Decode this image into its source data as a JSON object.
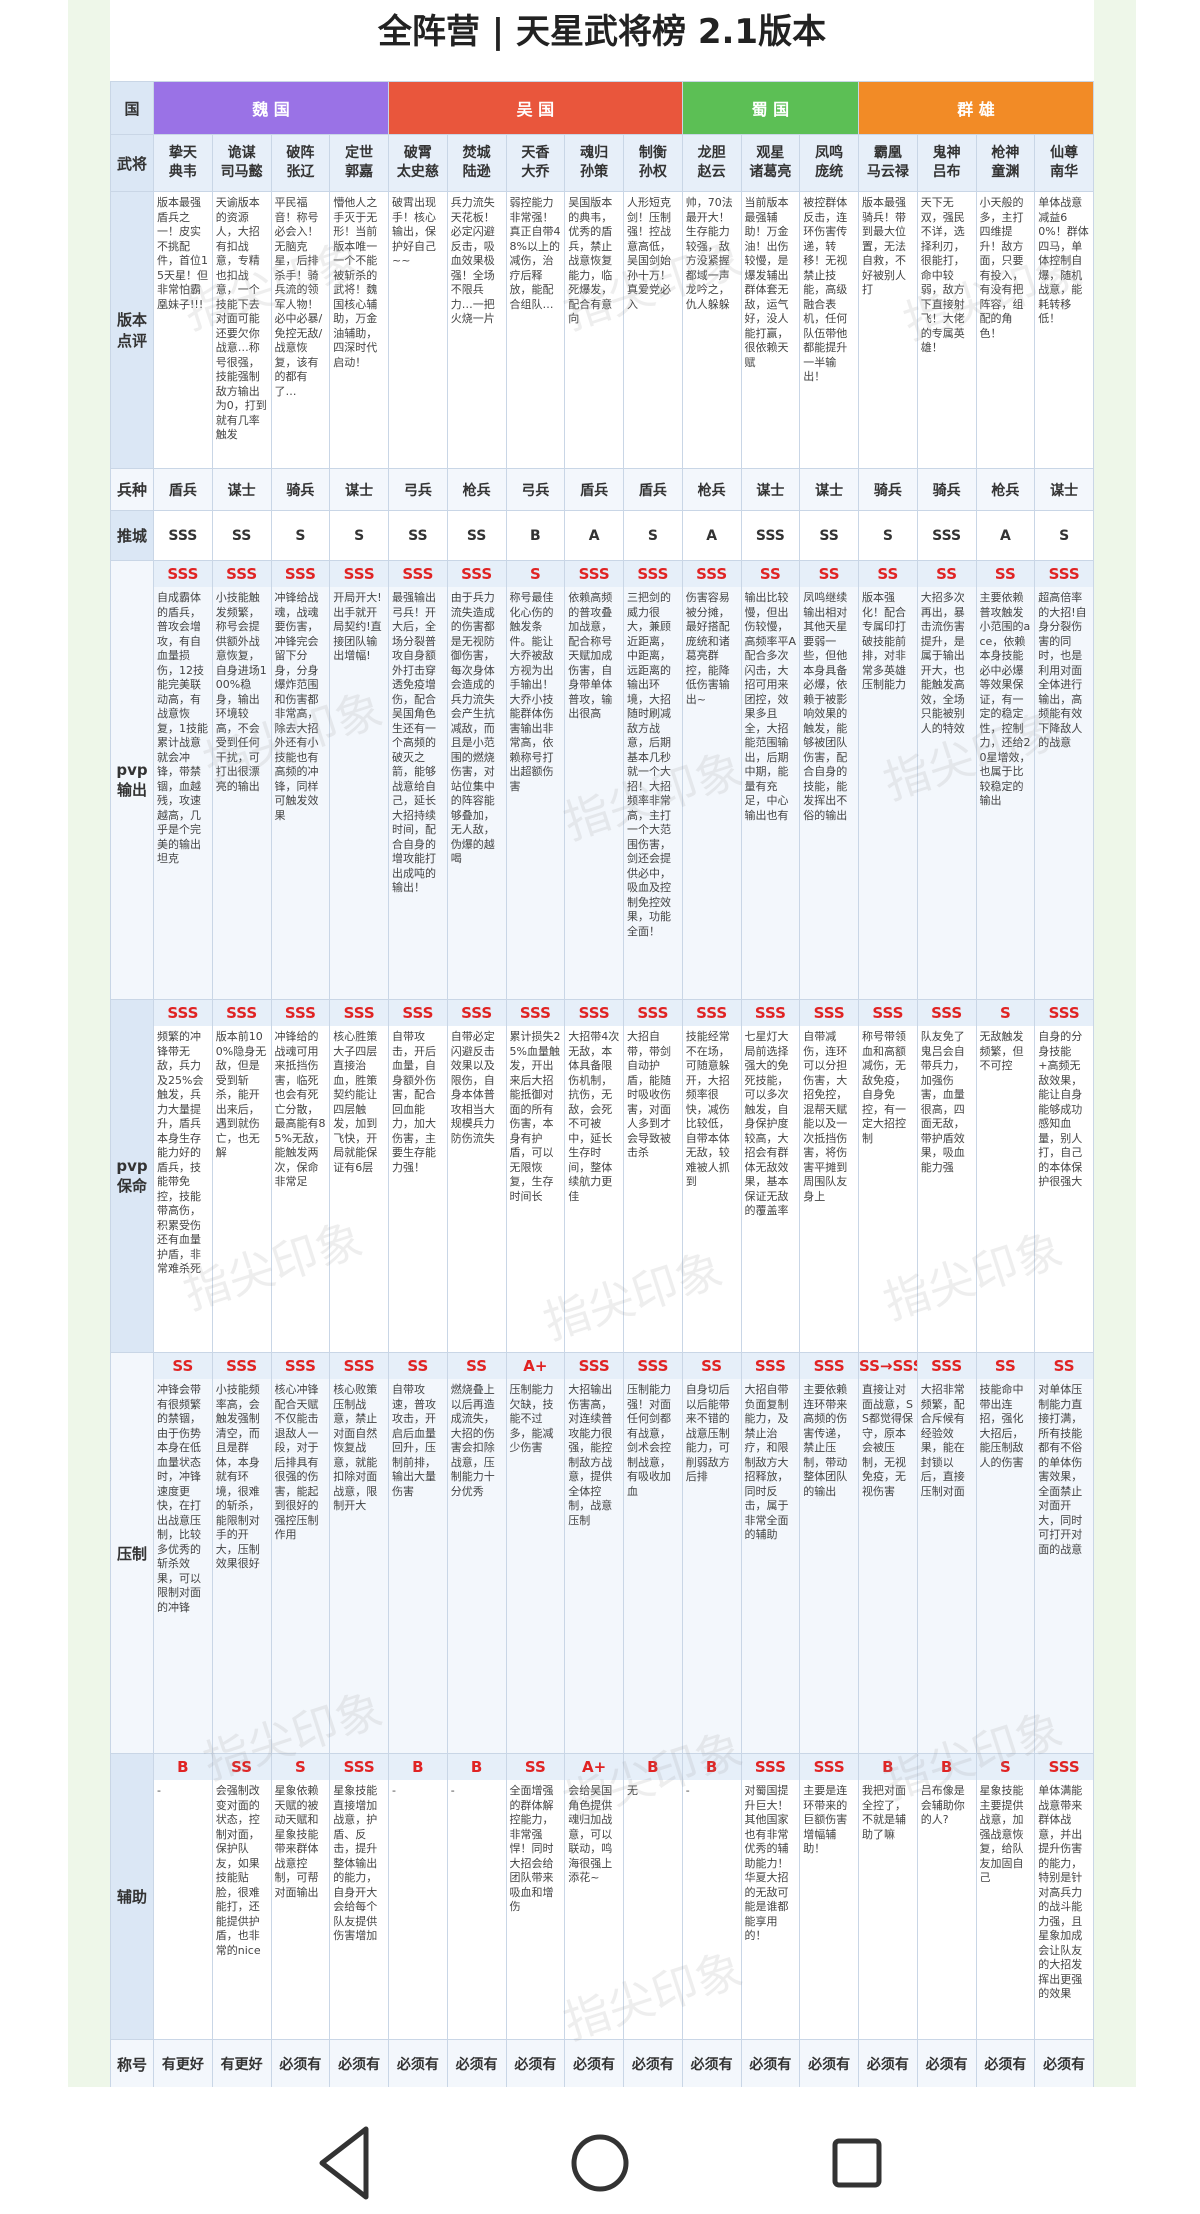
{
  "title": "全阵营 | 天星武将榜 2.1版本",
  "watermark": "指尖印象",
  "labels": {
    "faction": "国",
    "general": "武将"
  },
  "factions": [
    {
      "name": "魏 国",
      "color": "#9a72e6",
      "generals": [
        {
          "title": "挚天",
          "name": "典韦"
        },
        {
          "title": "诡谋",
          "name": "司马懿"
        },
        {
          "title": "破阵",
          "name": "张辽"
        },
        {
          "title": "定世",
          "name": "郭嘉"
        }
      ]
    },
    {
      "name": "吴 国",
      "color": "#e9563c",
      "generals": [
        {
          "title": "破霄",
          "name": "太史慈"
        },
        {
          "title": "焚城",
          "name": "陆逊"
        },
        {
          "title": "天香",
          "name": "大乔"
        },
        {
          "title": "魂归",
          "name": "孙策"
        },
        {
          "title": "制衡",
          "name": "孙权"
        }
      ]
    },
    {
      "name": "蜀 国",
      "color": "#5cbf55",
      "generals": [
        {
          "title": "龙胆",
          "name": "赵云"
        },
        {
          "title": "观星",
          "name": "诸葛亮"
        },
        {
          "title": "凤鸣",
          "name": "庞统"
        }
      ]
    },
    {
      "name": "群 雄",
      "color": "#f28b26",
      "generals": [
        {
          "title": "霸凰",
          "name": "马云禄"
        },
        {
          "title": "鬼神",
          "name": "吕布"
        },
        {
          "title": "枪神",
          "name": "童渊"
        },
        {
          "title": "仙尊",
          "name": "南华"
        }
      ]
    }
  ],
  "rows": [
    {
      "label": "版本点评",
      "kind": "text",
      "cells": [
        "版本最强盾兵之一！皮实不挑配件，首位15天星！但非常怕霸凰妹子!!!",
        "天谕版本的资源人，大招有扣战意，专精也扣战意，一个技能下去对面可能还要欠你战意…称号很强，技能强制敌方输出为0，打到就有几率触发",
        "平民福音！称号必会入！无脑克星，后排杀手！骑兵流的领军人物！必中必暴/免控无敌/战意恢复，该有的都有了…",
        "懵他人之手灭于无形！当前版本唯一一个不能被斩杀的武将！魏国核心辅助，万金油辅助，四深时代启动！",
        "破霄出现手！核心输出，保护好自己~~",
        "兵力流失天花板！必定闪避反击，吸血效果极强！全场不限兵力…一把火烧一片",
        "弱控能力非常强！真正自带48%以上的减伤，治疗后释放，能配合组队…",
        "吴国版本的典韦，优秀的盾兵，禁止战意恢复能力，临死爆发，配合有意向",
        "人形短克剑！压制强！控战意高低，吴国剑始孙十万！真爱党必入",
        "帅，70法最开大！生存能力较强，敌方没紧握都域一声龙吟之，仇人躲躲",
        "当前版本最强辅助！万金油！出伤较慢，是爆发辅出群体套无敌，运气好，没人能打赢，很依赖天赋",
        "被控群体反击，连环伤害传递，转移！无视禁止技能，高级融合表机，任何队伍带他都能提升一半输出！",
        "版本最强骑兵！带到最大位置，无法自救，不好被别人打",
        "天下无双，强民不详，选择利刃，很能打，命中较弱，敌方下直接射飞！大佬的专属英雄！",
        "小天般的多，主打四维提升！敌方面，只要有投入，有没有把阵容，组配的角色！",
        "单体战意减益60%！群体四马，单体控制自爆，随机战意，能耗转移低！"
      ]
    },
    {
      "label": "兵种",
      "kind": "type",
      "cells": [
        "盾兵",
        "谋士",
        "骑兵",
        "谋士",
        "弓兵",
        "枪兵",
        "弓兵",
        "盾兵",
        "盾兵",
        "枪兵",
        "谋士",
        "谋士",
        "骑兵",
        "骑兵",
        "枪兵",
        "谋士"
      ]
    },
    {
      "label": "推城",
      "kind": "grade",
      "cells": [
        "SSS",
        "SS",
        "S",
        "S",
        "SS",
        "SS",
        "B",
        "A",
        "S",
        "A",
        "SSS",
        "SS",
        "S",
        "SSS",
        "A",
        "S"
      ]
    },
    {
      "label": "pvp输出",
      "kind": "rated",
      "cells": [
        {
          "rating": "SSS",
          "text": "自成霸体的盾兵，普攻会增攻，有自血量损伤，12技能完美联动高，有战意恢复，1技能累计战意就会冲锋，带禁锢，血越残，攻速越高，几乎是个完美的输出坦克"
        },
        {
          "rating": "SSS",
          "text": "小技能触发频繁，称号会提供额外战意恢复，自身进场100%稳身，输出环境较高，不会受到任何干扰，可打出很漂亮的输出"
        },
        {
          "rating": "SSS",
          "text": "冲锋给战魂，战魂要伤害，冲锋完会留下分身，分身爆炸范围和伤害都非常高，除去大招外还有小技能也有高频的冲锋，同样可触发效果"
        },
        {
          "rating": "SSS",
          "text": "开局开大!出手就开局契约!直接团队输出增幅!"
        },
        {
          "rating": "SSS",
          "text": "最强输出弓兵！开大后，全场分裂普攻自身额外打击穿透免疫增伤，配合吴国角色生还有一个高频的破灭之箭，能够战意给自己，延长大招持续时间，配合自身的增攻能打出成吨的输出！"
        },
        {
          "rating": "SSS",
          "text": "由于兵力流失造成的伤害都是无视防御伤害，每次身体会造成的兵力流失会产生抗减敌，而且是小范围的燃烧伤害，对站位集中的阵容能够叠加，无人敌，伪爆的越喝"
        },
        {
          "rating": "S",
          "text": "称号最佳化心伤的触发条件。能让大乔被敌方视为出手输出！大乔小技能群体伤害输出非常高，依赖称号打出超额伤害"
        },
        {
          "rating": "SSS",
          "text": "依赖高频的普攻叠加战意，配合称号天赋加成伤害，自身带单体普攻，输出很高"
        },
        {
          "rating": "SSS",
          "text": "三把剑的威力很大，兼顾近距离，中距离，远距离的输出环境，大招随时刷减敌方战意，后期基本几秒就一个大招！大招频率非常高，主打一个大范围伤害，剑还会提供必中，吸血及控制免控效果，功能全面！"
        },
        {
          "rating": "SSS",
          "text": "伤害容易被分摊，最好搭配庞统和诸葛亮群控，能降低伤害输出~"
        },
        {
          "rating": "SS",
          "text": "输出比较慢，但出伤较慢，高频率平A配合多次闪击，大招可用来团控，效果多且全，大招能范围输出，后期中期，能量有充足，中心输出也有"
        },
        {
          "rating": "SS",
          "text": "凤鸣继续输出相对其他天星要弱一些，但他本身具备必爆，依赖于被影响效果的触发，能够被团队伤害，配合自身的技能，能发挥出不俗的输出"
        },
        {
          "rating": "SS",
          "text": "版本强化！配合专属印打破技能前排，对非常多英雄压制能力"
        },
        {
          "rating": "SS",
          "text": "大招多次再出，暴击流伤害提升，是属于输出开大，也能触发高效，全场只能被别人的特效"
        },
        {
          "rating": "SS",
          "text": "主要依赖普攻触发小范围的ace，依赖本身技能必中必爆等效果保证，有一定的稳定性，控制力，还给20星增效，也属于比较稳定的输出"
        },
        {
          "rating": "SSS",
          "text": "超高倍率的大招!自身分裂伤害的同时，也是利用对面全体进行输出，高频能有效下降敌人的战意"
        }
      ]
    },
    {
      "label": "pvp保命",
      "kind": "rated",
      "cells": [
        {
          "rating": "SSS",
          "text": "频繁的冲锋带无敌，兵力及25%会触发，兵力大量提升，盾兵本身生存能力好的盾兵，技能带免控，技能带高伤，积累受伤还有血量护盾，非常难杀死"
        },
        {
          "rating": "SSS",
          "text": "版本前100%隐身无敌，但是受到斩杀，能开出来后，遇到就伤亡，也无解"
        },
        {
          "rating": "SSS",
          "text": "冲锋给的战魂可用来抵挡伤害，临死也会有死亡分散，最高能有85%无敌，能触发两次，保命非常足"
        },
        {
          "rating": "SSS",
          "text": "核心胜策大子四层直接治血，胜策契约能让四层触发，加到飞快，开局就能保证有6层"
        },
        {
          "rating": "SSS",
          "text": "自带攻击，开后血量，自身额外伤害，配合回血能力，加大伤害，主要生存能力强！"
        },
        {
          "rating": "SSS",
          "text": "自带必定闪避反击效果以及限伤，自身本体普攻相当大规模兵力防伤流失"
        },
        {
          "rating": "SSS",
          "text": "累计损失25%血量触发，开出来后大招能抵御对面的所有伤害，本身有护盾，可以无限恢复，生存时间长"
        },
        {
          "rating": "SSS",
          "text": "大招带4次无敌，本体具备限伤机制，抗伤，无敌，会死不可被中，延长生存时间，整体续航力更佳"
        },
        {
          "rating": "SSS",
          "text": "大招自带，带剑自动护盾，能随时吸收伤害，对面人多到才会导致被击杀"
        },
        {
          "rating": "SSS",
          "text": "技能经常不在场，可随意躲开，大招频率很快，减伤比较低，自带本体无敌，较难被人抓到"
        },
        {
          "rating": "SSS",
          "text": "七星灯大局前选择强大的免死技能，可以多次触发，自身保护度较高，大招会有群体无敌效果，基本保证无敌的覆盖率"
        },
        {
          "rating": "SSS",
          "text": "自带减伤，连环可以分担伤害，大招免控，混帮天赋能以及一次抵挡伤害，将伤害平摊到周围队友身上"
        },
        {
          "rating": "SSS",
          "text": "称号带领血和高额减伤，无敌免疫，自身免控，有一定大招控制"
        },
        {
          "rating": "SSS",
          "text": "队友免了鬼吕会自带兵力，加强伤害，血量很高，四面无敌，带护盾效果，吸血能力强"
        },
        {
          "rating": "S",
          "text": "无敌触发频繁，但不可控"
        },
        {
          "rating": "SSS",
          "text": "自身的分身技能+高频无敌效果，能让自身能够成功感知血量，别人打，自己的本体保护很强大"
        }
      ]
    },
    {
      "label": "压制",
      "kind": "rated",
      "cells": [
        {
          "rating": "SS",
          "text": "冲锋会带有很频繁的禁锢，由于伤势本身在低血量状态时，冲锋速度更快，在打出战意压制，比较多优秀的斩杀效果，可以限制对面的冲锋"
        },
        {
          "rating": "SSS",
          "text": "小技能频率高，会触发强制清空，而且是群体，本身就有环境，很难的斩杀，能限制对手的开大，压制效果很好"
        },
        {
          "rating": "SSS",
          "text": "核心冲锋配合天赋不仅能击退敌人一段，对于后排具有很强的伤害，能起到很好的强控压制作用"
        },
        {
          "rating": "SSS",
          "text": "核心败策压制战意，禁止对面自然恢复战意，就能扣除对面战意，限制开大"
        },
        {
          "rating": "SS",
          "text": "自带攻速，普攻攻击，开启后血量回升，压制前排，输出大量伤害"
        },
        {
          "rating": "SS",
          "text": "燃烧叠上以后再造成流失，大招的伤害会扣除战意，压制能力十分优秀"
        },
        {
          "rating": "A+",
          "text": "压制能力欠缺，技能不过多，能减少伤害"
        },
        {
          "rating": "SSS",
          "text": "大招输出伤害高，对连续普攻能力很强，能控制敌方战意，提供全体控制，战意压制"
        },
        {
          "rating": "SSS",
          "text": "压制能力强！对面任何剑都有战意，剑术会控制战意，有吸收加血"
        },
        {
          "rating": "SS",
          "text": "自身切后以后能带来不错的战意压制能力，可削弱敌方后排"
        },
        {
          "rating": "SSS",
          "text": "大招自带负面复制能力，及禁止治疗，和限制敌方大招释放，同时反击，属于非常全面的辅助"
        },
        {
          "rating": "SSS",
          "text": "主要依赖连环带来高频的伤害传递，禁止压制，带动整体团队的输出"
        },
        {
          "rating": "SS→SSS",
          "text": "直接让对面战意，SS都觉得保守，原本会被压制，无视免疫，无视伤害"
        },
        {
          "rating": "SSS",
          "text": "大招非常频繁，配合斥候有经验效果，能在封锁以后，直接压制对面"
        },
        {
          "rating": "SS",
          "text": "技能命中带出连招，强化大招后，能压制敌人的伤害"
        },
        {
          "rating": "SS",
          "text": "对单体压制能力直接打满，所有技能都有不俗的单体伤害效果，全面禁止对面开大，同时可打开对面的战意"
        }
      ]
    },
    {
      "label": "辅助",
      "kind": "rated",
      "cells": [
        {
          "rating": "B",
          "text": "-"
        },
        {
          "rating": "SS",
          "text": "会强制改变对面的状态，控制对面，保护队友，如果技能贴脸，很难能打，还能提供护盾，也非常的nice"
        },
        {
          "rating": "S",
          "text": "星象依赖天赋的被动天赋和星象技能带来群体战意控制，可帮对面输出"
        },
        {
          "rating": "SSS",
          "text": "星象技能直接增加战意，护盾、反击，提升整体输出的能力，自身开大会给每个队友提供伤害增加"
        },
        {
          "rating": "B",
          "text": "-"
        },
        {
          "rating": "B",
          "text": "-"
        },
        {
          "rating": "SS",
          "text": "全面增强的群体解控能力，非常强悍！同时大招会给团队带来吸血和增伤"
        },
        {
          "rating": "A+",
          "text": "会给吴国角色提供魂归加战意，可以联动，鸣海很强上添花~"
        },
        {
          "rating": "B",
          "text": "无"
        },
        {
          "rating": "B",
          "text": "-"
        },
        {
          "rating": "SSS",
          "text": "对蜀国提升巨大！其他国家也有非常优秀的辅助能力！华夏大招的无敌可能是谁都能享用的！"
        },
        {
          "rating": "SSS",
          "text": "主要是连环带来的巨额伤害增幅辅助！"
        },
        {
          "rating": "B",
          "text": "我把对面全控了，不就是辅助了嘛"
        },
        {
          "rating": "B",
          "text": "吕布像是会辅助你的人?"
        },
        {
          "rating": "S",
          "text": "星象技能主要提供战意，加强战意恢复，给队友加固自己"
        },
        {
          "rating": "SSS",
          "text": "单体满能战意带来群体战意，并出提升伤害的能力，特别是针对高兵力的战斗能力强，且星象加成会让队友的大招发挥出更强的效果"
        }
      ]
    },
    {
      "label": "称号",
      "kind": "type",
      "cells": [
        "有更好",
        "有更好",
        "必须有",
        "必须有",
        "必须有",
        "必须有",
        "必须有",
        "必须有",
        "必须有",
        "必须有",
        "必须有",
        "必须有",
        "必须有",
        "必须有",
        "必须有",
        "必须有"
      ]
    }
  ]
}
